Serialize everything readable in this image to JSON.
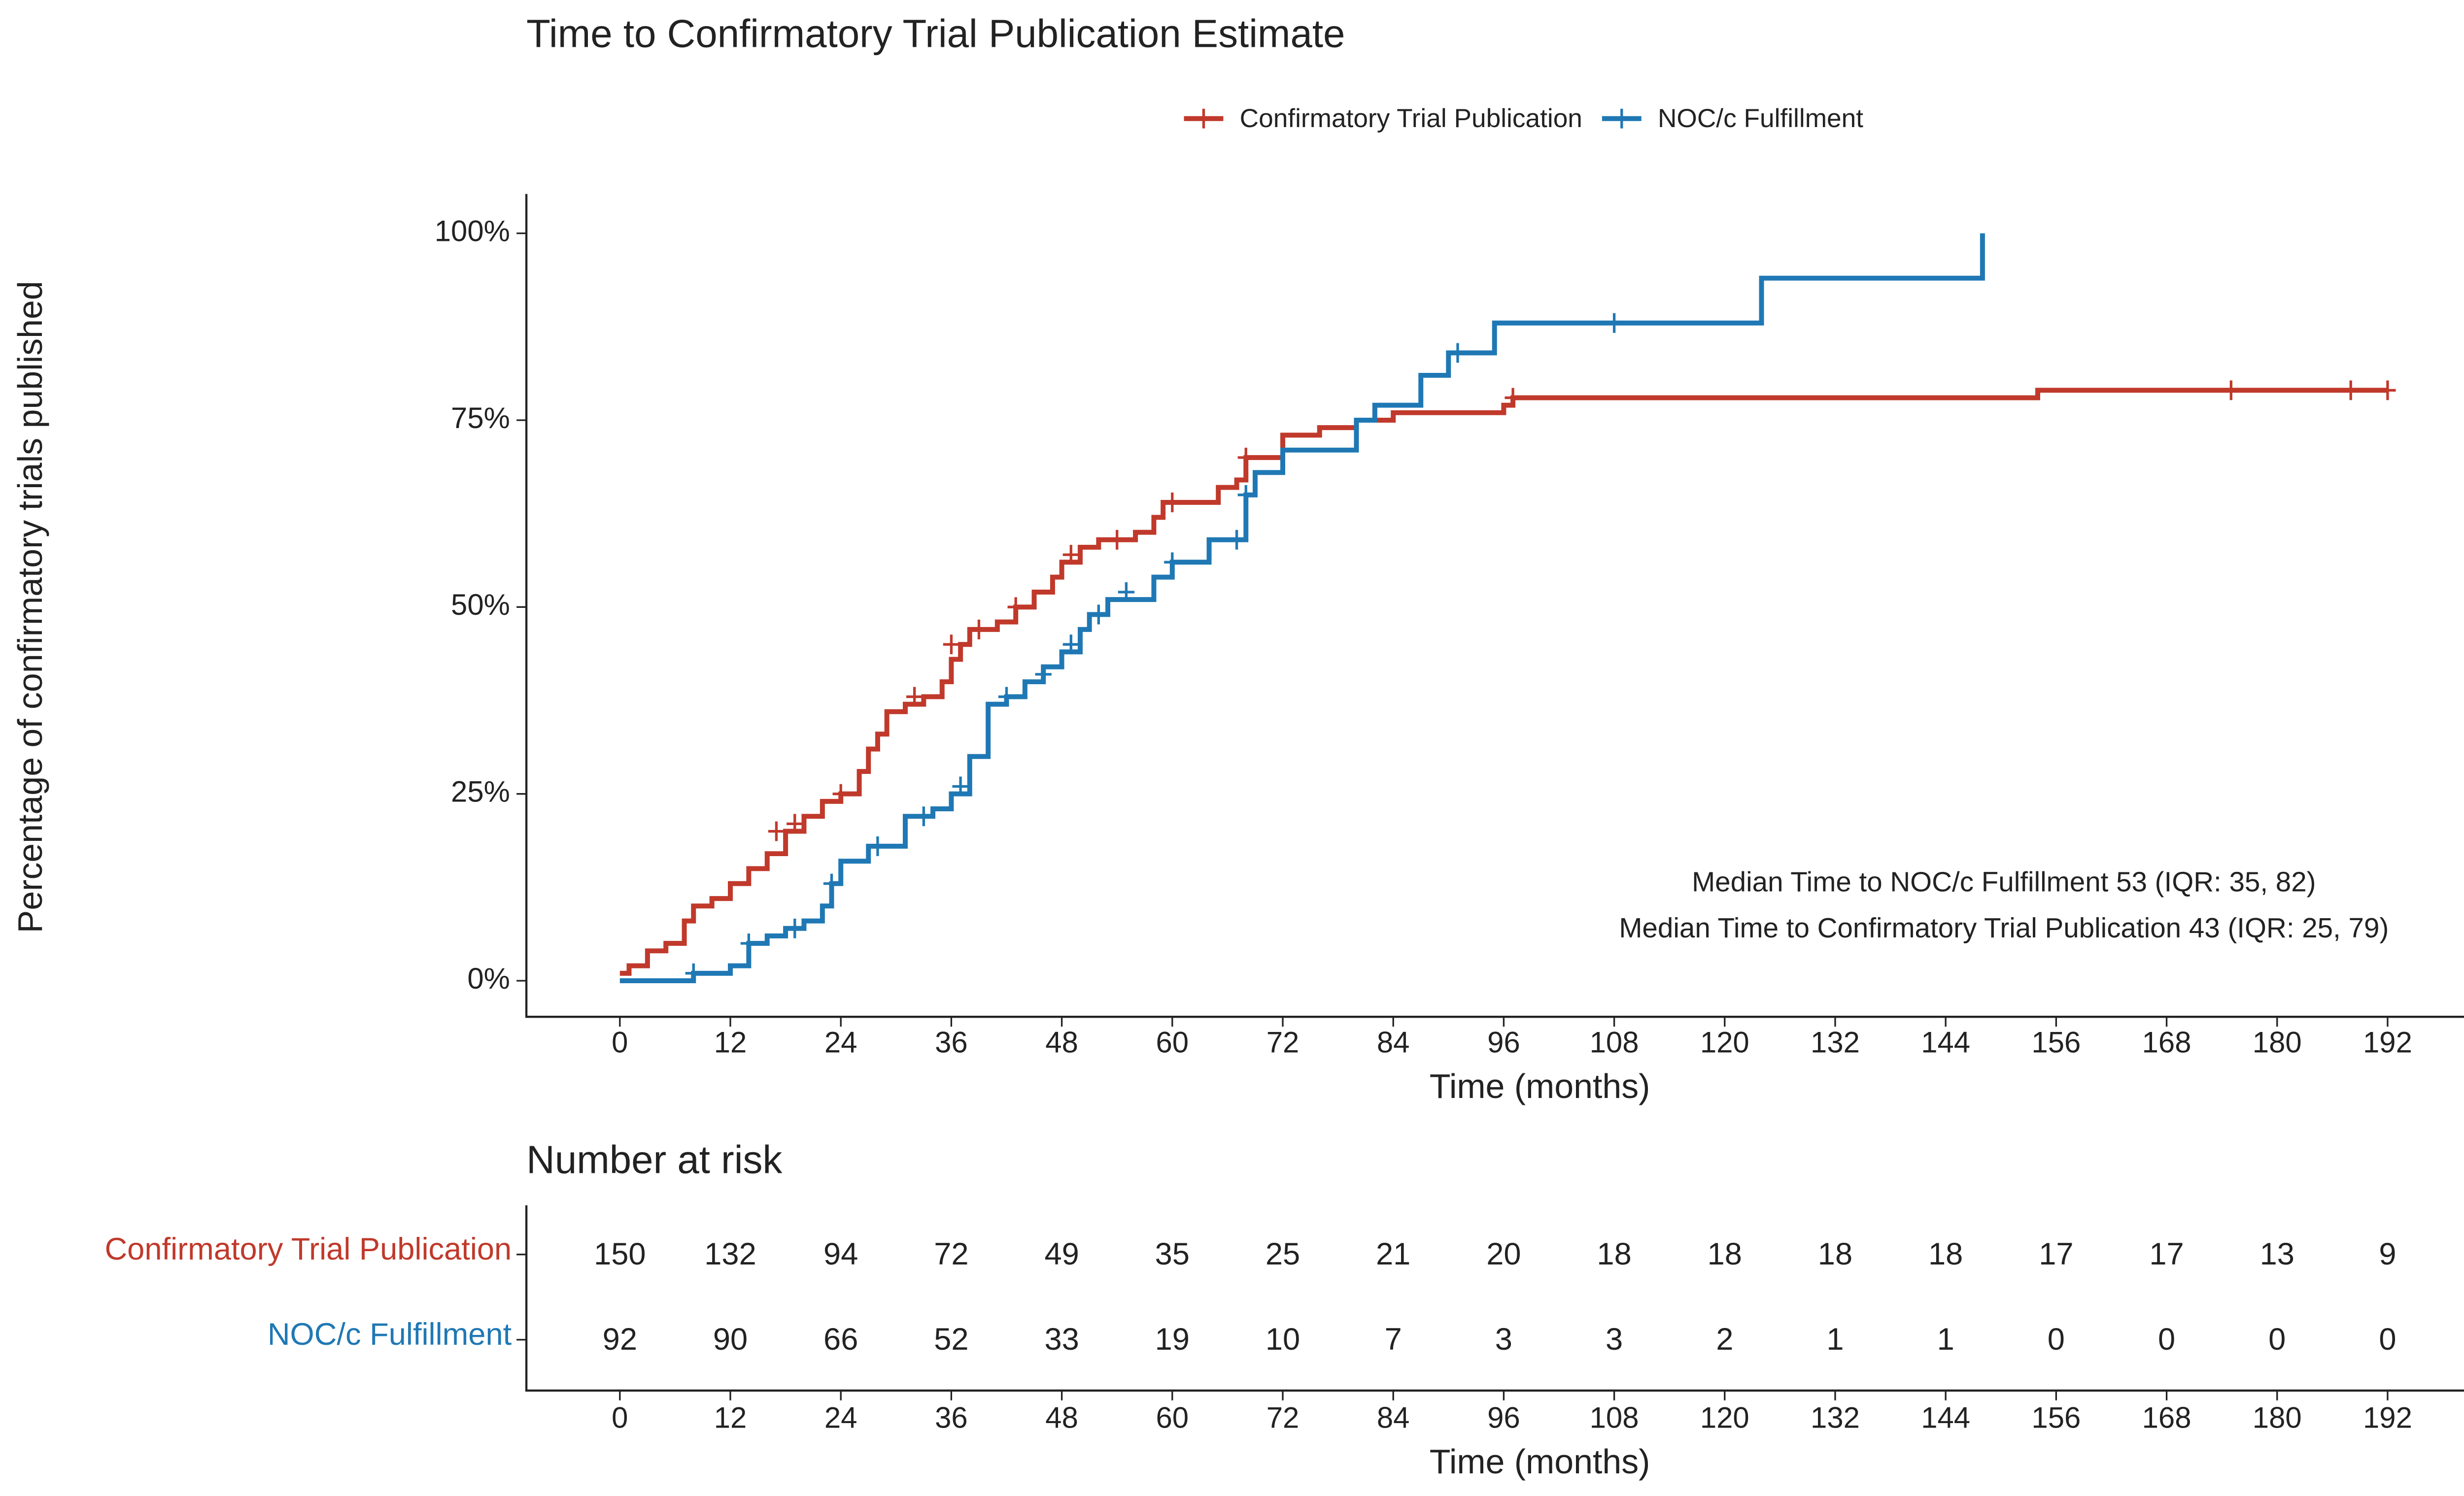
{
  "chart_data": {
    "type": "step",
    "title": "Time to Confirmatory Trial Publication Estimate",
    "xlabel": "Time (months)",
    "ylabel": "Percentage of confirmatory trials published",
    "xlim": [
      -10,
      209
    ],
    "ylim": [
      -5,
      105
    ],
    "xticks": [
      0,
      12,
      24,
      36,
      48,
      60,
      72,
      84,
      96,
      108,
      120,
      132,
      144,
      156,
      168,
      180,
      192
    ],
    "yticks": [
      {
        "value": 0,
        "label": "0%"
      },
      {
        "value": 25,
        "label": "25%"
      },
      {
        "value": 50,
        "label": "50%"
      },
      {
        "value": 75,
        "label": "75%"
      },
      {
        "value": 100,
        "label": "100%"
      }
    ],
    "legend": "top",
    "series": [
      {
        "name": "Confirmatory Trial Publication",
        "color": "#c0392b",
        "x": [
          0,
          1,
          3,
          5,
          7,
          8,
          10,
          12,
          14,
          16,
          18,
          20,
          22,
          24,
          26,
          27,
          28,
          29,
          31,
          33,
          35,
          36,
          37,
          38,
          41,
          43,
          45,
          47,
          48,
          50,
          52,
          56,
          58,
          59,
          65,
          67,
          68,
          72,
          76,
          80,
          84,
          96,
          97,
          154,
          192
        ],
        "values": [
          1,
          2,
          4,
          5,
          8,
          10,
          11,
          13,
          15,
          17,
          20,
          22,
          24,
          25,
          28,
          31,
          33,
          36,
          37,
          38,
          40,
          43,
          45,
          47,
          48,
          50,
          52,
          54,
          56,
          58,
          59,
          60,
          62,
          64,
          66,
          67,
          70,
          73,
          74,
          75,
          76,
          77,
          78,
          79,
          79
        ],
        "censor_x": [
          17,
          19,
          24,
          32,
          36,
          39,
          43,
          49,
          54,
          60,
          68,
          97,
          175,
          188,
          192
        ],
        "censor_values": [
          20,
          21,
          25,
          38,
          45,
          47,
          50,
          57,
          59,
          64,
          70,
          78,
          79,
          79,
          79
        ]
      },
      {
        "name": "NOC/c Fulfillment",
        "color": "#1f78b4",
        "x": [
          0,
          8,
          12,
          14,
          16,
          18,
          20,
          22,
          23,
          24,
          27,
          31,
          34,
          36,
          38,
          40,
          42,
          44,
          46,
          48,
          50,
          51,
          53,
          58,
          60,
          64,
          68,
          69,
          72,
          80,
          82,
          87,
          90,
          95,
          124,
          148,
          148
        ],
        "values": [
          0,
          1,
          2,
          5,
          6,
          7,
          8,
          10,
          13,
          16,
          18,
          22,
          23,
          25,
          30,
          37,
          38,
          40,
          42,
          44,
          47,
          49,
          51,
          54,
          56,
          59,
          65,
          68,
          71,
          75,
          77,
          81,
          84,
          88,
          94,
          94,
          100
        ],
        "censor_x": [
          8,
          14,
          19,
          23,
          28,
          33,
          37,
          42,
          46,
          49,
          52,
          55,
          60,
          67,
          68,
          91,
          108
        ],
        "censor_values": [
          1,
          5,
          7,
          13,
          18,
          22,
          26,
          38,
          41,
          45,
          49,
          52,
          56,
          59,
          65,
          84,
          88
        ]
      }
    ],
    "annotations": [
      "Median Time to NOC/c Fulfillment  53 (IQR: 35, 82)",
      "Median Time to Confirmatory Trial Publication  43 (IQR: 25, 79)"
    ],
    "risk_table": {
      "title": "Number at risk",
      "rows": [
        {
          "name": "Confirmatory Trial Publication",
          "color": "#c0392b",
          "values": [
            150,
            132,
            94,
            72,
            49,
            35,
            25,
            21,
            20,
            18,
            18,
            18,
            18,
            17,
            17,
            13,
            9
          ]
        },
        {
          "name": "NOC/c Fulfillment",
          "color": "#1f78b4",
          "values": [
            92,
            90,
            66,
            52,
            33,
            19,
            10,
            7,
            3,
            3,
            2,
            1,
            1,
            0,
            0,
            0,
            0
          ]
        }
      ]
    }
  }
}
